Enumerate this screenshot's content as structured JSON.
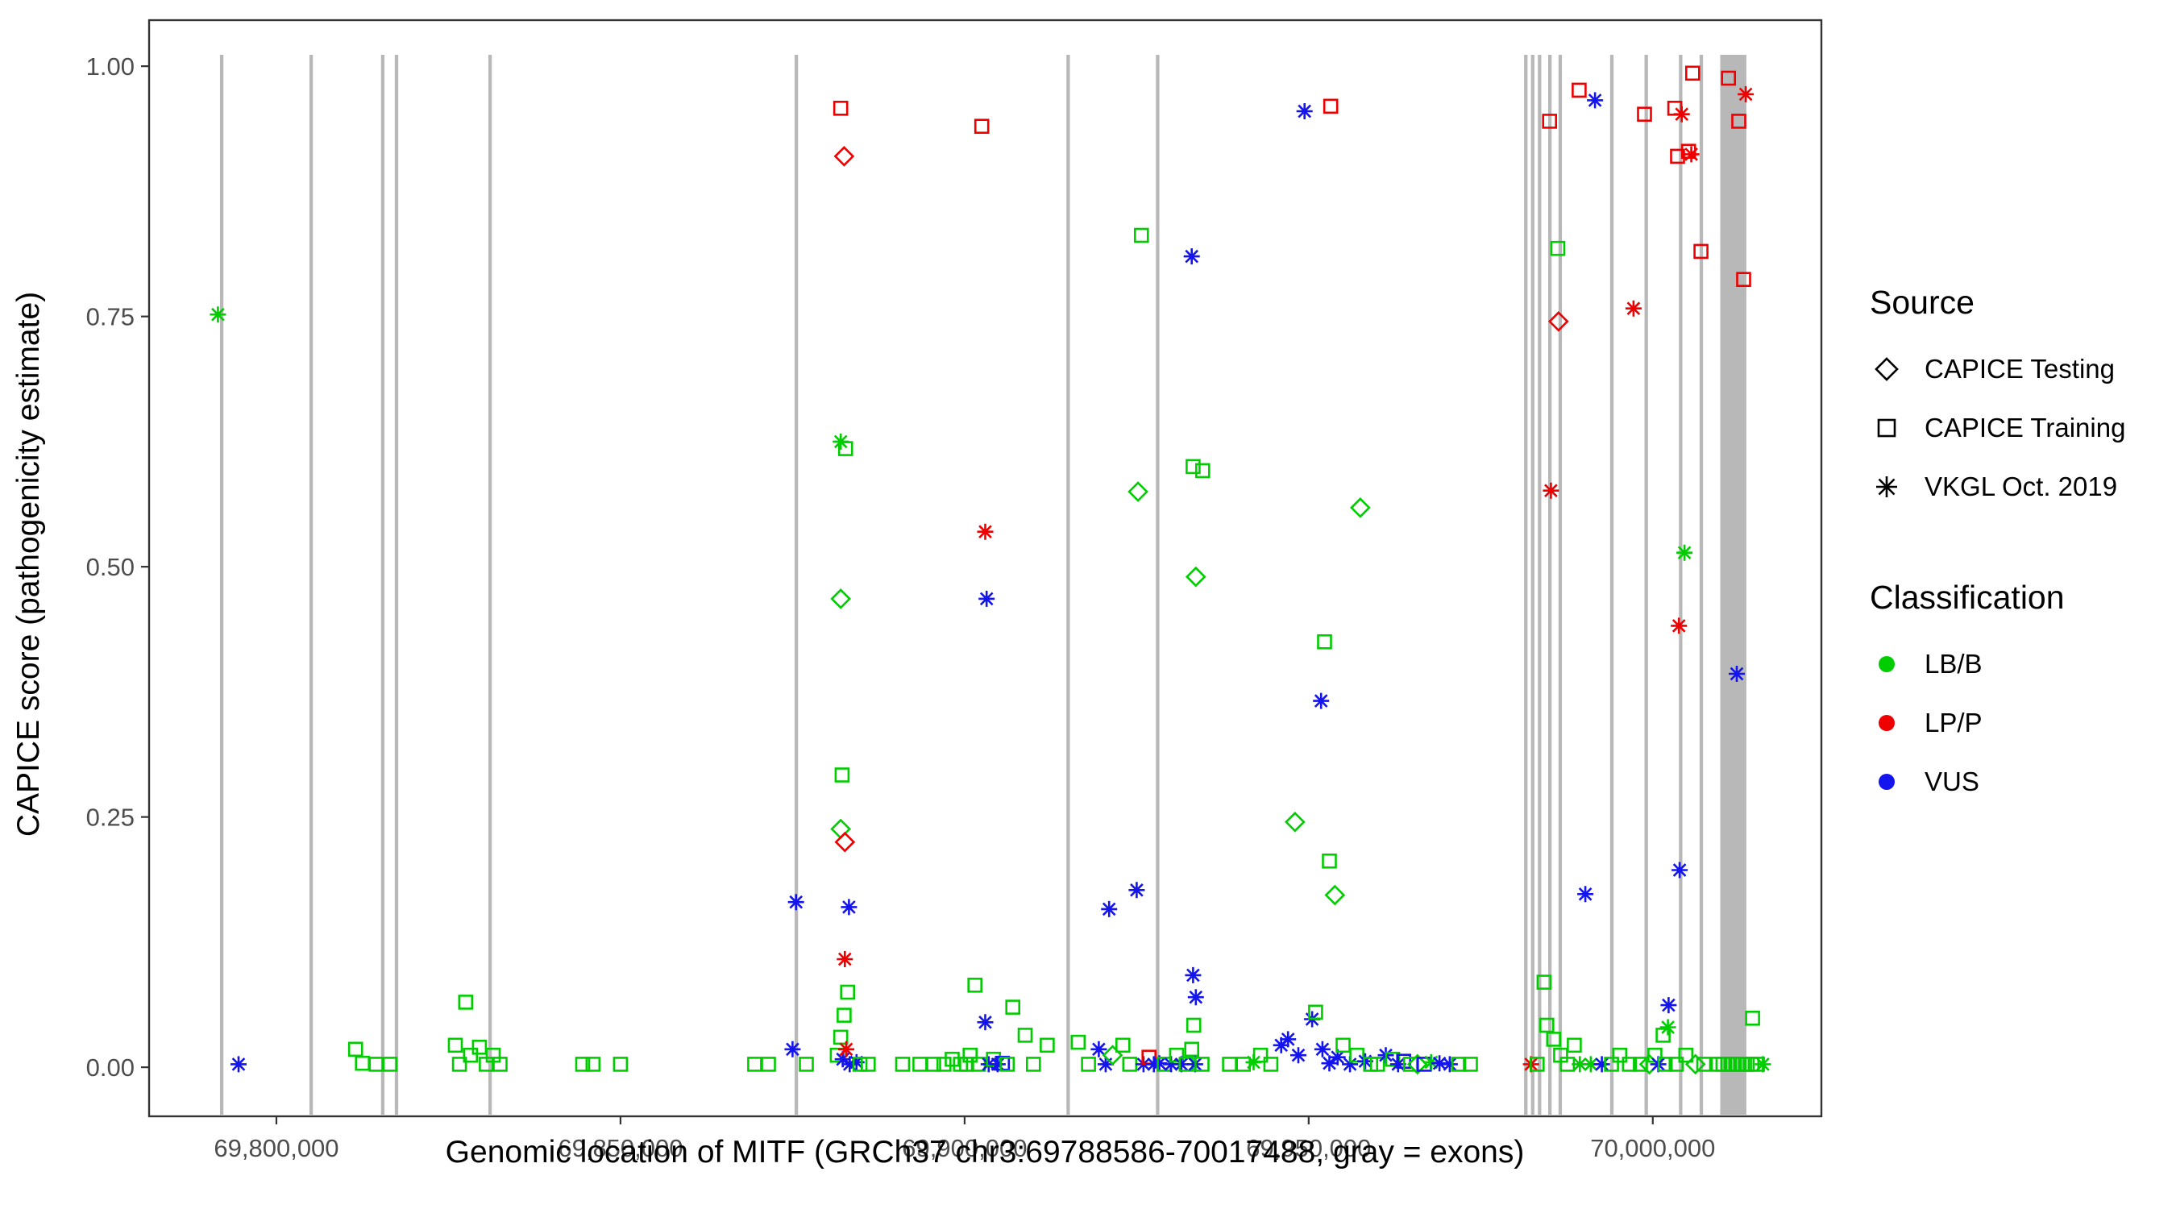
{
  "legend": {
    "source": {
      "title": "Source",
      "items": [
        {
          "label": "CAPICE Testing",
          "marker": "diamond"
        },
        {
          "label": "CAPICE Training",
          "marker": "square"
        },
        {
          "label": "VKGL Oct. 2019",
          "marker": "asterisk"
        }
      ]
    },
    "classification": {
      "title": "Classification",
      "items": [
        {
          "label": "LB/B",
          "color": "#00CD00"
        },
        {
          "label": "LP/P",
          "color": "#EE0000"
        },
        {
          "label": "VUS",
          "color": "#1414EE"
        }
      ]
    }
  },
  "chart_data": {
    "type": "scatter",
    "title": "",
    "xlabel": "Genomic location of MITF (GRCh37 chr3:69788586-70017488, gray = exons)",
    "ylabel": "CAPICE score (pathogenicity estimate)",
    "xlim": [
      69781500,
      70024500
    ],
    "ylim": [
      -0.049,
      1.046
    ],
    "grid": false,
    "legend_position": "right",
    "x_ticks": [
      {
        "value": 69800000,
        "label": "69,800,000"
      },
      {
        "value": 69850000,
        "label": "69,850,000"
      },
      {
        "value": 69900000,
        "label": "69,900,000"
      },
      {
        "value": 69950000,
        "label": "69,950,000"
      },
      {
        "value": 70000000,
        "label": "70,000,000"
      }
    ],
    "y_ticks": [
      {
        "value": 0,
        "label": "0.00"
      },
      {
        "value": 0.25,
        "label": "0.25"
      },
      {
        "value": 0.5,
        "label": "0.50"
      },
      {
        "value": 0.75,
        "label": "0.75"
      },
      {
        "value": 1.0,
        "label": "1.00"
      }
    ],
    "exon_color": "#B8B8B8",
    "exons": [
      [
        69791800,
        69792300
      ],
      [
        69804800,
        69805300
      ],
      [
        69815200,
        69815700
      ],
      [
        69817200,
        69817700
      ],
      [
        69830800,
        69831300
      ],
      [
        69875300,
        69875800
      ],
      [
        69914800,
        69915300
      ],
      [
        69927800,
        69928300
      ],
      [
        69981300,
        69981800
      ],
      [
        69982300,
        69982800
      ],
      [
        69983300,
        69983800
      ],
      [
        69984800,
        69985300
      ],
      [
        69986300,
        69986800
      ],
      [
        69993800,
        69994300
      ],
      [
        69998800,
        69999300
      ],
      [
        70003800,
        70004300
      ],
      [
        70006800,
        70007300
      ],
      [
        70009800,
        70013600
      ]
    ],
    "source_markers": {
      "t": "CAPICE Testing (open diamond)",
      "r": "CAPICE Training (open square)",
      "v": "VKGL Oct. 2019 (asterisk)"
    },
    "class_colors": {
      "b": "#00CD00",
      "p": "#EE0000",
      "u": "#1414EE"
    },
    "class_names": {
      "b": "LB/B",
      "p": "LP/P",
      "u": "VUS"
    },
    "points": [
      [
        69791500,
        0.752,
        "v",
        "b"
      ],
      [
        69794500,
        0.003,
        "v",
        "u"
      ],
      [
        69811500,
        0.018,
        "r",
        "b"
      ],
      [
        69812500,
        0.004,
        "r",
        "b"
      ],
      [
        69814500,
        0.003,
        "r",
        "b"
      ],
      [
        69816500,
        0.003,
        "r",
        "b"
      ],
      [
        69826000,
        0.022,
        "r",
        "b"
      ],
      [
        69826600,
        0.003,
        "r",
        "b"
      ],
      [
        69827500,
        0.065,
        "r",
        "b"
      ],
      [
        69828200,
        0.012,
        "r",
        "b"
      ],
      [
        69829500,
        0.02,
        "r",
        "b"
      ],
      [
        69830500,
        0.003,
        "r",
        "b"
      ],
      [
        69831500,
        0.012,
        "r",
        "b"
      ],
      [
        69832500,
        0.003,
        "r",
        "b"
      ],
      [
        69844500,
        0.003,
        "r",
        "b"
      ],
      [
        69846000,
        0.003,
        "r",
        "b"
      ],
      [
        69850000,
        0.003,
        "r",
        "b"
      ],
      [
        69869500,
        0.003,
        "r",
        "b"
      ],
      [
        69871500,
        0.003,
        "r",
        "b"
      ],
      [
        69875000,
        0.018,
        "v",
        "u"
      ],
      [
        69875500,
        0.165,
        "v",
        "u"
      ],
      [
        69877000,
        0.003,
        "r",
        "b"
      ],
      [
        69881500,
        0.012,
        "r",
        "b"
      ],
      [
        69882000,
        0.958,
        "r",
        "p"
      ],
      [
        69882000,
        0.625,
        "v",
        "b"
      ],
      [
        69882000,
        0.468,
        "t",
        "b"
      ],
      [
        69882000,
        0.238,
        "t",
        "b"
      ],
      [
        69882000,
        0.03,
        "r",
        "b"
      ],
      [
        69882200,
        0.292,
        "r",
        "b"
      ],
      [
        69882300,
        0.008,
        "v",
        "u"
      ],
      [
        69882500,
        0.91,
        "t",
        "p"
      ],
      [
        69882500,
        0.052,
        "r",
        "b"
      ],
      [
        69882600,
        0.225,
        "t",
        "p"
      ],
      [
        69882600,
        0.108,
        "v",
        "p"
      ],
      [
        69882700,
        0.618,
        "r",
        "b"
      ],
      [
        69882800,
        0.018,
        "v",
        "p"
      ],
      [
        69883000,
        0.075,
        "r",
        "b"
      ],
      [
        69883200,
        0.16,
        "v",
        "u"
      ],
      [
        69883300,
        0.003,
        "v",
        "u"
      ],
      [
        69884300,
        0.005,
        "v",
        "u"
      ],
      [
        69884800,
        0.003,
        "r",
        "b"
      ],
      [
        69886000,
        0.003,
        "r",
        "b"
      ],
      [
        69891000,
        0.003,
        "r",
        "b"
      ],
      [
        69893500,
        0.003,
        "r",
        "b"
      ],
      [
        69895500,
        0.003,
        "r",
        "b"
      ],
      [
        69897000,
        0.003,
        "r",
        "b"
      ],
      [
        69898200,
        0.008,
        "r",
        "b"
      ],
      [
        69899400,
        0.003,
        "r",
        "b"
      ],
      [
        69900300,
        0.003,
        "r",
        "b"
      ],
      [
        69900800,
        0.012,
        "r",
        "b"
      ],
      [
        69901500,
        0.082,
        "r",
        "b"
      ],
      [
        69902000,
        0.003,
        "r",
        "b"
      ],
      [
        69902500,
        0.94,
        "r",
        "p"
      ],
      [
        69903000,
        0.535,
        "v",
        "p"
      ],
      [
        69903000,
        0.045,
        "v",
        "u"
      ],
      [
        69903200,
        0.468,
        "v",
        "u"
      ],
      [
        69903500,
        0.003,
        "v",
        "u"
      ],
      [
        69904200,
        0.008,
        "r",
        "b"
      ],
      [
        69904800,
        0.003,
        "v",
        "u"
      ],
      [
        69905500,
        0.004,
        "r",
        "u"
      ],
      [
        69906200,
        0.003,
        "r",
        "b"
      ],
      [
        69907000,
        0.06,
        "r",
        "b"
      ],
      [
        69908800,
        0.032,
        "r",
        "b"
      ],
      [
        69910000,
        0.003,
        "r",
        "b"
      ],
      [
        69912000,
        0.022,
        "r",
        "b"
      ],
      [
        69916500,
        0.025,
        "r",
        "b"
      ],
      [
        69918000,
        0.003,
        "r",
        "b"
      ],
      [
        69919500,
        0.018,
        "v",
        "u"
      ],
      [
        69920500,
        0.003,
        "v",
        "u"
      ],
      [
        69921000,
        0.158,
        "v",
        "u"
      ],
      [
        69921500,
        0.012,
        "t",
        "b"
      ],
      [
        69923000,
        0.022,
        "r",
        "b"
      ],
      [
        69924000,
        0.003,
        "r",
        "b"
      ],
      [
        69925000,
        0.177,
        "v",
        "u"
      ],
      [
        69925200,
        0.575,
        "t",
        "b"
      ],
      [
        69925700,
        0.831,
        "r",
        "b"
      ],
      [
        69926000,
        0.003,
        "v",
        "u"
      ],
      [
        69926800,
        0.01,
        "r",
        "p"
      ],
      [
        69927500,
        0.003,
        "v",
        "u"
      ],
      [
        69928300,
        0.004,
        "v",
        "u"
      ],
      [
        69929000,
        0.003,
        "r",
        "b"
      ],
      [
        69930000,
        0.003,
        "v",
        "u"
      ],
      [
        69930800,
        0.012,
        "r",
        "b"
      ],
      [
        69931500,
        0.003,
        "v",
        "u"
      ],
      [
        69932200,
        0.003,
        "r",
        "b"
      ],
      [
        69933000,
        0.81,
        "v",
        "u"
      ],
      [
        69933000,
        0.018,
        "r",
        "b"
      ],
      [
        69933200,
        0.6,
        "r",
        "b"
      ],
      [
        69933200,
        0.092,
        "v",
        "u"
      ],
      [
        69933300,
        0.042,
        "r",
        "b"
      ],
      [
        69933500,
        0.003,
        "v",
        "u"
      ],
      [
        69933600,
        0.49,
        "t",
        "b"
      ],
      [
        69933600,
        0.07,
        "v",
        "u"
      ],
      [
        69934500,
        0.003,
        "r",
        "b"
      ],
      [
        69934600,
        0.596,
        "r",
        "b"
      ],
      [
        69938500,
        0.003,
        "r",
        "b"
      ],
      [
        69940500,
        0.003,
        "r",
        "b"
      ],
      [
        69942000,
        0.005,
        "v",
        "b"
      ],
      [
        69943000,
        0.012,
        "r",
        "b"
      ],
      [
        69944500,
        0.003,
        "r",
        "b"
      ],
      [
        69946000,
        0.022,
        "v",
        "u"
      ],
      [
        69947000,
        0.028,
        "v",
        "u"
      ],
      [
        69948000,
        0.245,
        "t",
        "b"
      ],
      [
        69948500,
        0.012,
        "v",
        "u"
      ],
      [
        69949400,
        0.955,
        "v",
        "u"
      ],
      [
        69950500,
        0.048,
        "v",
        "u"
      ],
      [
        69951000,
        0.055,
        "r",
        "b"
      ],
      [
        69951800,
        0.366,
        "v",
        "u"
      ],
      [
        69952000,
        0.018,
        "v",
        "u"
      ],
      [
        69952300,
        0.425,
        "r",
        "b"
      ],
      [
        69953000,
        0.206,
        "r",
        "b"
      ],
      [
        69953000,
        0.004,
        "v",
        "u"
      ],
      [
        69953200,
        0.96,
        "r",
        "p"
      ],
      [
        69953800,
        0.172,
        "t",
        "b"
      ],
      [
        69954200,
        0.01,
        "v",
        "u"
      ],
      [
        69955000,
        0.022,
        "r",
        "b"
      ],
      [
        69956000,
        0.003,
        "v",
        "u"
      ],
      [
        69957000,
        0.012,
        "r",
        "b"
      ],
      [
        69957500,
        0.559,
        "t",
        "b"
      ],
      [
        69958200,
        0.006,
        "v",
        "u"
      ],
      [
        69959000,
        0.003,
        "r",
        "b"
      ],
      [
        69960000,
        0.003,
        "r",
        "b"
      ],
      [
        69961200,
        0.012,
        "v",
        "u"
      ],
      [
        69962200,
        0.008,
        "r",
        "b"
      ],
      [
        69963000,
        0.003,
        "v",
        "u"
      ],
      [
        69963800,
        0.006,
        "r",
        "u"
      ],
      [
        69964800,
        0.003,
        "r",
        "b"
      ],
      [
        69965800,
        0.003,
        "t",
        "b"
      ],
      [
        69966800,
        0.003,
        "r",
        "u"
      ],
      [
        69967800,
        0.005,
        "v",
        "b"
      ],
      [
        69969000,
        0.004,
        "v",
        "u"
      ],
      [
        69970500,
        0.003,
        "v",
        "u"
      ],
      [
        69971800,
        0.003,
        "r",
        "b"
      ],
      [
        69973500,
        0.003,
        "r",
        "b"
      ],
      [
        69982300,
        0.003,
        "v",
        "p"
      ],
      [
        69983200,
        0.003,
        "r",
        "b"
      ],
      [
        69984200,
        0.085,
        "r",
        "b"
      ],
      [
        69984600,
        0.042,
        "r",
        "b"
      ],
      [
        69985000,
        0.945,
        "r",
        "p"
      ],
      [
        69985200,
        0.576,
        "v",
        "p"
      ],
      [
        69985600,
        0.028,
        "r",
        "b"
      ],
      [
        69986200,
        0.818,
        "r",
        "b"
      ],
      [
        69986300,
        0.745,
        "t",
        "p"
      ],
      [
        69986600,
        0.012,
        "r",
        "b"
      ],
      [
        69987600,
        0.003,
        "r",
        "b"
      ],
      [
        69988600,
        0.022,
        "r",
        "b"
      ],
      [
        69989300,
        0.976,
        "r",
        "p"
      ],
      [
        69989400,
        0.003,
        "v",
        "b"
      ],
      [
        69990200,
        0.173,
        "v",
        "u"
      ],
      [
        69991000,
        0.003,
        "v",
        "b"
      ],
      [
        69991600,
        0.966,
        "v",
        "u"
      ],
      [
        69992600,
        0.003,
        "v",
        "u"
      ],
      [
        69994000,
        0.003,
        "r",
        "b"
      ],
      [
        69995200,
        0.012,
        "r",
        "b"
      ],
      [
        69996600,
        0.003,
        "r",
        "b"
      ],
      [
        69997200,
        0.758,
        "v",
        "p"
      ],
      [
        69998200,
        0.003,
        "r",
        "b"
      ],
      [
        69998800,
        0.952,
        "r",
        "p"
      ],
      [
        69999500,
        0.003,
        "t",
        "b"
      ],
      [
        70000300,
        0.012,
        "r",
        "b"
      ],
      [
        70000800,
        0.003,
        "v",
        "u"
      ],
      [
        70001500,
        0.032,
        "r",
        "b"
      ],
      [
        70001800,
        0.003,
        "r",
        "b"
      ],
      [
        70002200,
        0.04,
        "v",
        "b"
      ],
      [
        70002300,
        0.062,
        "v",
        "u"
      ],
      [
        70003200,
        0.958,
        "r",
        "p"
      ],
      [
        70003400,
        0.003,
        "r",
        "b"
      ],
      [
        70003600,
        0.91,
        "r",
        "p"
      ],
      [
        70003800,
        0.441,
        "v",
        "p"
      ],
      [
        70003900,
        0.197,
        "v",
        "u"
      ],
      [
        70004200,
        0.952,
        "v",
        "p"
      ],
      [
        70004600,
        0.514,
        "v",
        "b"
      ],
      [
        70004800,
        0.012,
        "r",
        "b"
      ],
      [
        70005200,
        0.915,
        "r",
        "p"
      ],
      [
        70005600,
        0.912,
        "v",
        "p"
      ],
      [
        70005800,
        0.993,
        "r",
        "p"
      ],
      [
        70006200,
        0.003,
        "t",
        "b"
      ],
      [
        70007000,
        0.815,
        "r",
        "p"
      ],
      [
        70007400,
        0.003,
        "r",
        "b"
      ],
      [
        70009500,
        0.003,
        "r",
        "b"
      ],
      [
        70010200,
        0.003,
        "r",
        "b"
      ],
      [
        70010900,
        0.003,
        "r",
        "b"
      ],
      [
        70011000,
        0.988,
        "r",
        "p"
      ],
      [
        70011600,
        0.003,
        "r",
        "b"
      ],
      [
        70012200,
        0.393,
        "v",
        "u"
      ],
      [
        70012300,
        0.003,
        "r",
        "b"
      ],
      [
        70012500,
        0.945,
        "r",
        "p"
      ],
      [
        70013000,
        0.003,
        "r",
        "b"
      ],
      [
        70013200,
        0.787,
        "r",
        "p"
      ],
      [
        70013500,
        0.972,
        "v",
        "p"
      ],
      [
        70013700,
        0.003,
        "r",
        "b"
      ],
      [
        70014400,
        0.003,
        "r",
        "b"
      ],
      [
        70014500,
        0.049,
        "r",
        "b"
      ],
      [
        70015200,
        0.003,
        "r",
        "b"
      ],
      [
        70016000,
        0.003,
        "v",
        "b"
      ]
    ]
  }
}
